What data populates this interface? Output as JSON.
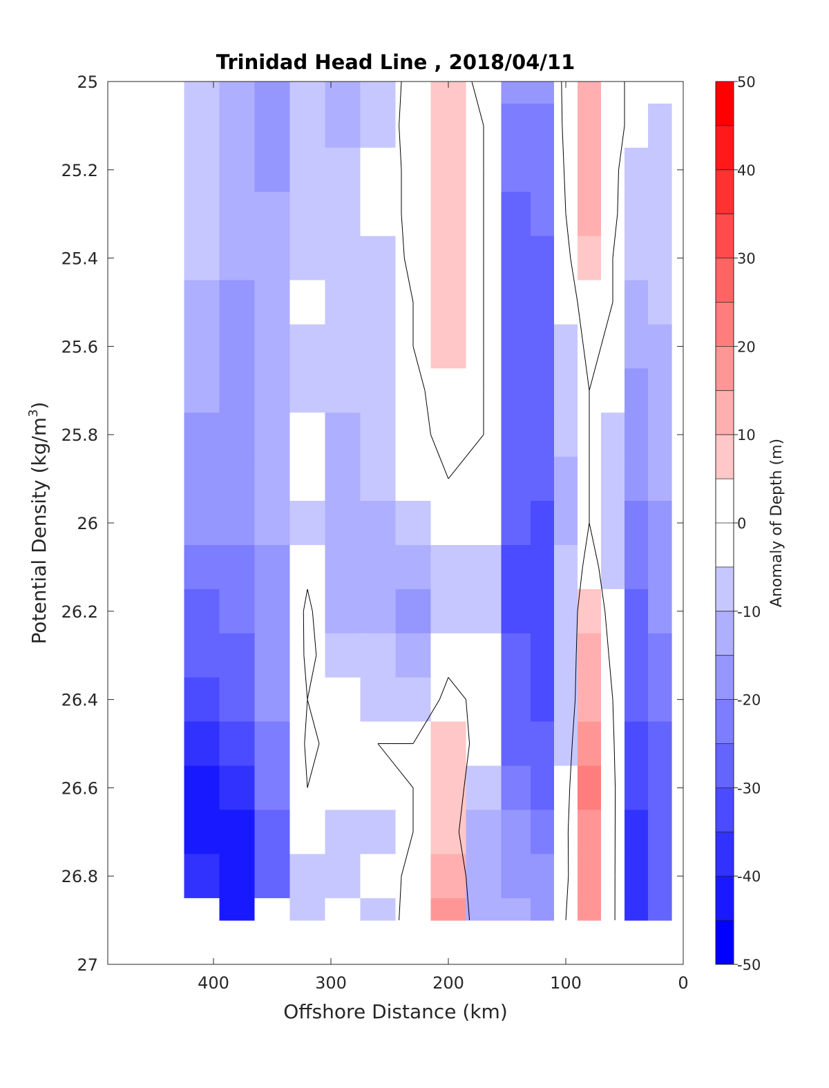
{
  "chart_data": {
    "type": "heatmap",
    "title": "Trinidad Head Line , 2018/04/11",
    "xlabel": "Offshore Distance (km)",
    "ylabel": "Potential Density (kg/m",
    "ylabel_sup": "3",
    "ylabel_close": ")",
    "xlim": [
      490,
      0
    ],
    "ylim": [
      27,
      25
    ],
    "x_ticks": [
      "400",
      "300",
      "200",
      "100",
      "0"
    ],
    "x_tick_values": [
      400,
      300,
      200,
      100,
      0
    ],
    "y_ticks": [
      "25",
      "25.2",
      "25.4",
      "25.6",
      "25.8",
      "26",
      "26.2",
      "26.4",
      "26.6",
      "26.8",
      "27"
    ],
    "y_tick_values": [
      25,
      25.2,
      25.4,
      25.6,
      25.8,
      26,
      26.2,
      26.4,
      26.6,
      26.8,
      27
    ],
    "x": [
      410,
      380,
      350,
      320,
      290,
      260,
      230,
      200,
      170,
      140,
      120,
      100,
      80,
      60,
      40,
      20
    ],
    "y": [
      25.0,
      25.1,
      25.2,
      25.3,
      25.4,
      25.5,
      25.6,
      25.7,
      25.8,
      25.9,
      26.0,
      26.1,
      26.2,
      26.3,
      26.4,
      26.5,
      26.6,
      26.7,
      26.8,
      26.9
    ],
    "z": [
      [
        -6,
        -12,
        -16,
        -10,
        -14,
        -8,
        4,
        8,
        -4,
        -20,
        -18,
        4,
        14,
        2,
        -2,
        -3
      ],
      [
        -8,
        -14,
        -18,
        -8,
        -12,
        -6,
        4,
        8,
        0,
        -24,
        -22,
        4,
        13,
        4,
        -4,
        -6
      ],
      [
        -8,
        -12,
        -16,
        -6,
        -8,
        -4,
        2,
        8,
        0,
        -24,
        -24,
        2,
        12,
        2,
        -6,
        -6
      ],
      [
        -10,
        -12,
        -14,
        -6,
        -8,
        -4,
        2,
        7,
        0,
        -26,
        -24,
        0,
        10,
        2,
        -8,
        -8
      ],
      [
        -10,
        -14,
        -14,
        -6,
        -8,
        -6,
        2,
        6,
        0,
        -26,
        -26,
        -2,
        8,
        0,
        -10,
        -10
      ],
      [
        -12,
        -16,
        -14,
        -4,
        -8,
        -6,
        0,
        6,
        0,
        -26,
        -28,
        -4,
        4,
        0,
        -12,
        -10
      ],
      [
        -12,
        -16,
        -14,
        -6,
        -10,
        -8,
        0,
        6,
        0,
        -28,
        -28,
        -6,
        2,
        -2,
        -14,
        -12
      ],
      [
        -14,
        -16,
        -12,
        -6,
        -10,
        -10,
        -2,
        4,
        0,
        -30,
        -30,
        -8,
        0,
        -4,
        -16,
        -14
      ],
      [
        -16,
        -18,
        -12,
        -4,
        -12,
        -10,
        -2,
        2,
        0,
        -30,
        -30,
        -10,
        0,
        -6,
        -18,
        -14
      ],
      [
        -18,
        -20,
        -12,
        -2,
        -12,
        -10,
        -4,
        0,
        -2,
        -30,
        -30,
        -12,
        0,
        -8,
        -20,
        -14
      ],
      [
        -20,
        -20,
        -14,
        -6,
        -14,
        -12,
        -8,
        -4,
        -4,
        -30,
        -32,
        -12,
        0,
        -8,
        -22,
        -16
      ],
      [
        -24,
        -22,
        -16,
        -2,
        -12,
        -14,
        -12,
        -6,
        -6,
        -32,
        -32,
        -10,
        4,
        -6,
        -24,
        -18
      ],
      [
        -28,
        -24,
        -16,
        2,
        -12,
        -14,
        -16,
        -6,
        -6,
        -32,
        -34,
        -8,
        8,
        -4,
        -26,
        -20
      ],
      [
        -30,
        -26,
        -18,
        2,
        -6,
        -10,
        -14,
        -2,
        -4,
        -30,
        -34,
        -8,
        10,
        -2,
        -28,
        -22
      ],
      [
        -34,
        -30,
        -20,
        0,
        -4,
        -6,
        -6,
        2,
        -2,
        -28,
        -32,
        -8,
        12,
        0,
        -30,
        -24
      ],
      [
        -38,
        -34,
        -22,
        2,
        -4,
        0,
        0,
        6,
        -4,
        -26,
        -30,
        -6,
        16,
        2,
        -32,
        -26
      ],
      [
        -42,
        -40,
        -24,
        0,
        -4,
        -4,
        0,
        8,
        -10,
        -22,
        -28,
        -4,
        20,
        4,
        -34,
        -26
      ],
      [
        -44,
        -44,
        -26,
        -4,
        -6,
        -8,
        0,
        6,
        -14,
        -20,
        -24,
        -2,
        18,
        4,
        -36,
        -28
      ],
      [
        -40,
        -44,
        -28,
        -10,
        -6,
        -4,
        2,
        14,
        -14,
        -16,
        -20,
        -2,
        16,
        4,
        -38,
        -30
      ],
      [
        0,
        -44,
        0,
        -8,
        -4,
        -6,
        4,
        18,
        -12,
        -14,
        -18,
        0,
        18,
        4,
        -40,
        -30
      ]
    ],
    "contour_levels": [
      0
    ],
    "colorbar": {
      "label": "Anomaly of Depth (m)",
      "ticks": [
        "50",
        "40",
        "30",
        "20",
        "10",
        "0",
        "-10",
        "-20",
        "-30",
        "-40",
        "-50"
      ],
      "tick_values": [
        50,
        40,
        30,
        20,
        10,
        0,
        -10,
        -20,
        -30,
        -40,
        -50
      ],
      "range": [
        -50,
        50
      ],
      "step": 5,
      "colormap": "blue-white-red diverging",
      "color_min": "#0000ff",
      "color_mid": "#ffffff",
      "color_max": "#ff0000"
    },
    "grid": false
  }
}
